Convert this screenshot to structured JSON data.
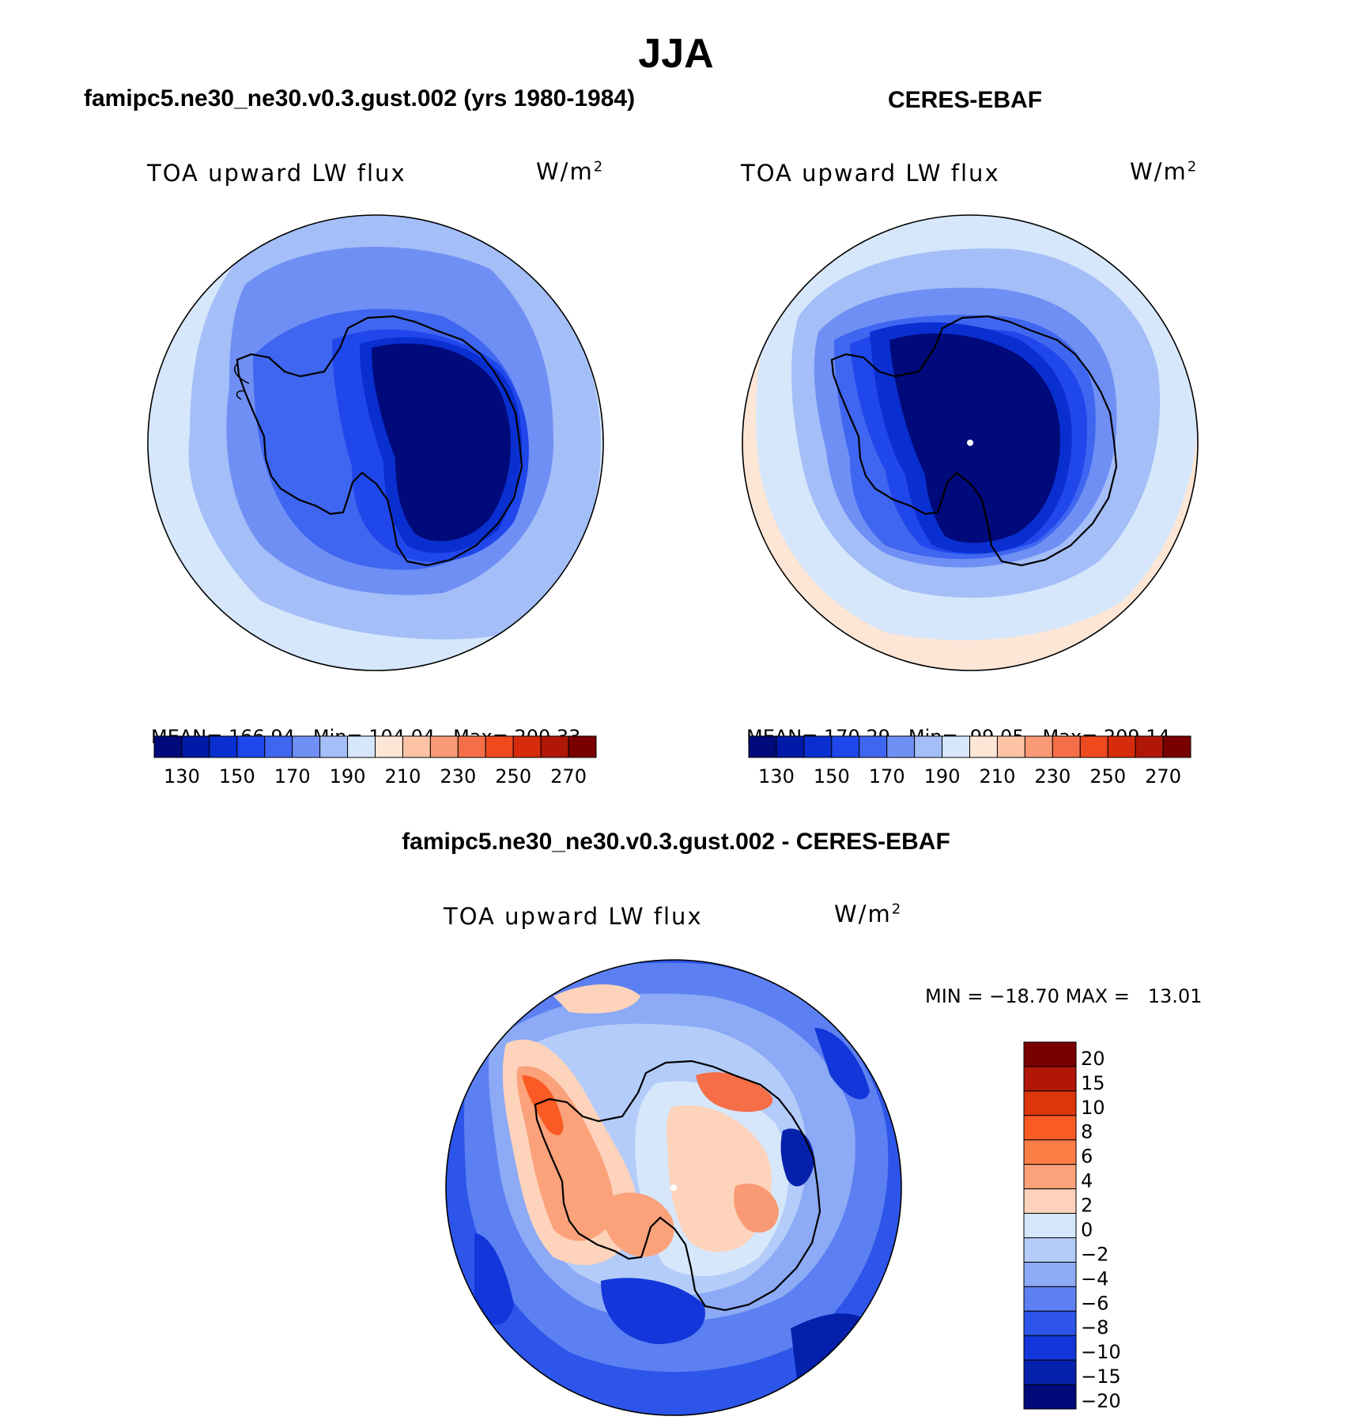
{
  "title": "JJA",
  "panels": [
    {
      "heading": "famipc5.ne30_ne30.v0.3.gust.002 (yrs 1980-1984)",
      "variable": "TOA upward LW flux",
      "units_base": "W/m",
      "units_exp": "2",
      "stats": {
        "mean_label": "MEAN=",
        "mean": "166.94",
        "min_label": "Min=",
        "min": "104.04",
        "max_label": "Max=",
        "max": "200.33"
      }
    },
    {
      "heading": "CERES-EBAF",
      "variable": "TOA upward LW flux",
      "units_base": "W/m",
      "units_exp": "2",
      "stats": {
        "mean_label": "MEAN=",
        "mean": "170.29",
        "min_label": "Min=",
        "min": "99.05",
        "max_label": "Max=",
        "max": "209.14"
      }
    }
  ],
  "abs_colorbar": {
    "colors": [
      "#000a7a",
      "#0019a8",
      "#0a2fd0",
      "#1f47ec",
      "#3f66f0",
      "#6f8ff4",
      "#a4bef8",
      "#d6e7fb",
      "#fde6d6",
      "#fcc3a6",
      "#f99a74",
      "#f56e48",
      "#ef4a1f",
      "#d62c0c",
      "#b01707",
      "#7a0000"
    ],
    "tick_labels": [
      "130",
      "150",
      "170",
      "190",
      "210",
      "230",
      "250",
      "270"
    ]
  },
  "difference_panel": {
    "heading": "famipc5.ne30_ne30.v0.3.gust.002 - CERES-EBAF",
    "variable": "TOA upward LW flux",
    "units_base": "W/m",
    "units_exp": "2",
    "minmax_text": "MIN = −18.70 MAX =   13.01"
  },
  "diff_colorbar": {
    "colors": [
      "#7a0000",
      "#b01707",
      "#dd350c",
      "#fa5a23",
      "#fa7d46",
      "#fba27b",
      "#fdd3bb",
      "#d6e7fb",
      "#b4ccf9",
      "#8caaf5",
      "#5c80f1",
      "#2d55ea",
      "#1236d9",
      "#0521ac",
      "#000a7a"
    ],
    "tick_labels": [
      "20",
      "15",
      "10",
      "8",
      "6",
      "4",
      "2",
      "0",
      "−2",
      "−4",
      "−6",
      "−8",
      "−10",
      "−15",
      "−20"
    ]
  }
}
